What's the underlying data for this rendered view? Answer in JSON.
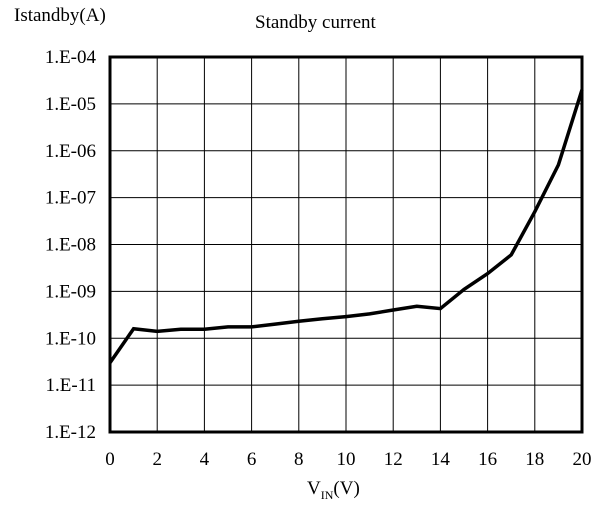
{
  "chart_data": {
    "type": "line",
    "title": "Standby current",
    "ylabel": "Istandby(A)",
    "xlabel_main": "V",
    "xlabel_sub": "IN",
    "xlabel_unit": "(V)",
    "y_scale": "log",
    "ylim": [
      1e-12,
      0.0001
    ],
    "xlim": [
      0,
      20
    ],
    "grid": true,
    "x_ticks": [
      "0",
      "2",
      "4",
      "6",
      "8",
      "10",
      "12",
      "14",
      "16",
      "18",
      "20"
    ],
    "y_ticks": [
      "1.E-04",
      "1.E-05",
      "1.E-06",
      "1.E-07",
      "1.E-08",
      "1.E-09",
      "1.E-10",
      "1.E-11",
      "1.E-12"
    ],
    "series": [
      {
        "x": [
          0,
          1,
          2,
          3,
          4,
          5,
          6,
          7,
          8,
          9,
          10,
          11,
          12,
          13,
          14,
          15,
          16,
          17,
          18,
          19,
          20
        ],
        "y": [
          3e-11,
          1.6e-10,
          1.4e-10,
          1.55e-10,
          1.55e-10,
          1.75e-10,
          1.75e-10,
          2e-10,
          2.3e-10,
          2.6e-10,
          2.9e-10,
          3.3e-10,
          4e-10,
          4.8e-10,
          4.3e-10,
          1.1e-09,
          2.4e-09,
          6e-09,
          5e-08,
          5e-07,
          2e-05
        ]
      }
    ],
    "color": "#000000"
  }
}
